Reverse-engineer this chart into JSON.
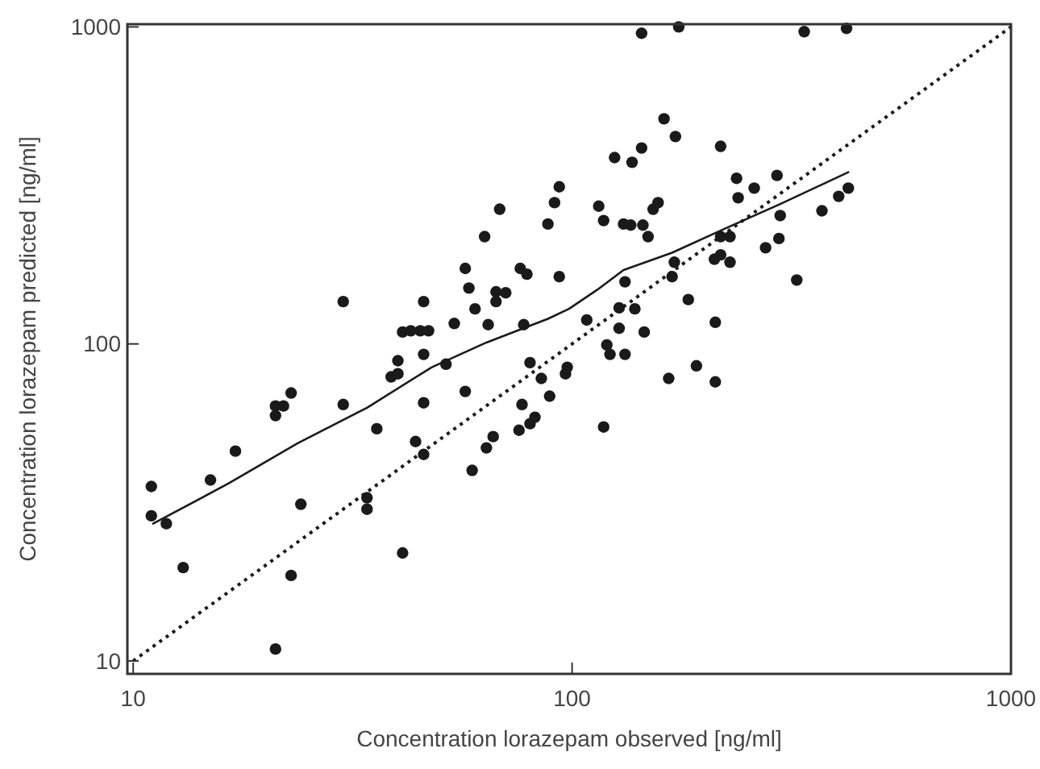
{
  "chart_data": {
    "type": "scatter",
    "xlabel": "Concentration lorazepam observed [ng/ml]",
    "ylabel": "Concentration lorazepam predicted [ng/ml]",
    "log": "xy",
    "xlim": [
      9.7,
      1000
    ],
    "ylim": [
      9.1,
      1020
    ],
    "xticks": [
      10,
      100,
      1000
    ],
    "yticks": [
      10,
      100,
      1000
    ],
    "grid": false,
    "series": [
      {
        "color": "#1a1a1a",
        "marker": "circle",
        "x": [
          11.0,
          11.0,
          11.9,
          13.0,
          15.0,
          17.1,
          21.1,
          22.9,
          24.1,
          21.1,
          21.1,
          22.0,
          22.9,
          30.1,
          35.9,
          34.1,
          34.1,
          41.1,
          44.0,
          45.9,
          45.9,
          38.7,
          40.1,
          40.1,
          41.1,
          42.9,
          45.1,
          47.1,
          45.9,
          51.6,
          53.9,
          64.4,
          77.6,
          57.1,
          59.2,
          63.8,
          66.1,
          75.7,
          80.2,
          82.3,
          76.9,
          80.2,
          85.1,
          88.9,
          96.6,
          97.5,
          30.1,
          45.9,
          57.1,
          58.2,
          60.1,
          67.1,
          67.1,
          70.6,
          63.2,
          68.4,
          76.2,
          78.9,
          88.1,
          91.2,
          93.5,
          93.5,
          144,
          175,
          338,
          422,
          162,
          172,
          125,
          137,
          144,
          218,
          237,
          260,
          293,
          239,
          298,
          371,
          405,
          426,
          115,
          118,
          131,
          136,
          145,
          149,
          153,
          157,
          218,
          229,
          218,
          211,
          229,
          171,
          169,
          132,
          276,
          296,
          325,
          184,
          108,
          128,
          139,
          128,
          146,
          212,
          120,
          122,
          132,
          118,
          166,
          192,
          212
        ],
        "values": [
          35.5,
          28.7,
          27.1,
          19.7,
          37.2,
          45.9,
          10.9,
          18.6,
          31.2,
          59.4,
          63.7,
          63.7,
          70.0,
          64.4,
          54.0,
          32.7,
          30.1,
          21.9,
          49.2,
          44.8,
          65.2,
          78.7,
          80.5,
          88.5,
          109,
          110,
          110,
          110,
          92.7,
          86.3,
          116,
          115,
          115,
          70.8,
          39.9,
          47.0,
          51.0,
          53.4,
          56.0,
          58.7,
          64.4,
          87.3,
          77.8,
          68.4,
          80.5,
          84.4,
          136,
          136,
          173,
          150,
          129,
          146,
          136,
          145,
          218,
          266,
          173,
          166,
          239,
          279,
          313,
          163,
          955,
          1000,
          966,
          989,
          513,
          451,
          387,
          374,
          415,
          420,
          333,
          310,
          340,
          289,
          254,
          263,
          292,
          310,
          272,
          245,
          239,
          237,
          237,
          218,
          266,
          279,
          218,
          218,
          191,
          185,
          181,
          181,
          163,
          157,
          201,
          215,
          159,
          138,
          119,
          130,
          129,
          112,
          109,
          117,
          99.3,
          92.7,
          92.7,
          54.7,
          77.8,
          85.3,
          75.9
        ]
      },
      {
        "type": "line",
        "color": "#1a1a1a",
        "line_style": "solid",
        "x": [
          11.1,
          16.5,
          23.7,
          34.1,
          47.9,
          63.8,
          88.1,
          98.4,
          114,
          131,
          169,
          223,
          296,
          426
        ],
        "values": [
          27.1,
          36.3,
          48.6,
          62.9,
          84.4,
          101,
          120,
          129,
          148,
          171,
          194,
          231,
          275,
          348
        ]
      },
      {
        "type": "line",
        "color": "#1a1a1a",
        "line_style": "dotted",
        "x": [
          10,
          1000
        ],
        "values": [
          10,
          1000
        ]
      }
    ]
  }
}
